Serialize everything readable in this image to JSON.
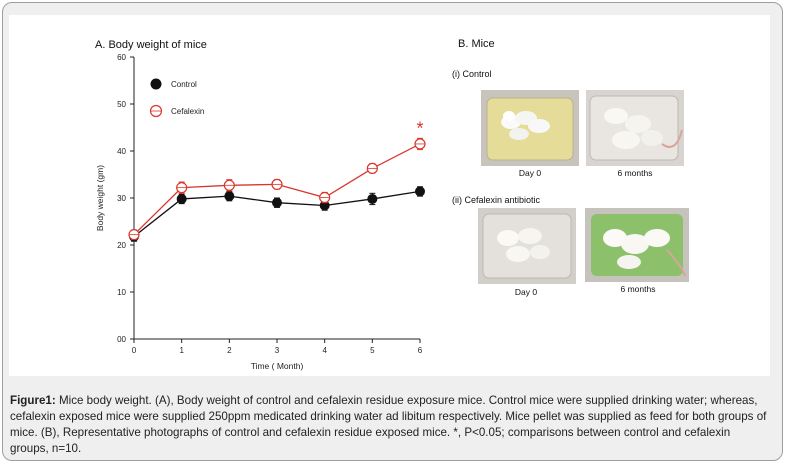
{
  "caption": {
    "label": "Figure1:",
    "text": " Mice body weight. (A), Body weight of control and cefalexin residue exposure mice. Control mice were supplied drinking water; whereas, cefalexin exposed mice were supplied 250ppm medicated drinking water ad libitum respectively. Mice pellet was supplied as feed for both groups of mice. (B), Representative photographs of control and cefalexin residue exposed mice. *, P<0.05; comparisons between control and cefalexin groups, n=10."
  },
  "panel_b": {
    "title": "B. Mice",
    "control_label": "(i) Control",
    "cefalexin_label": "(ii) Cefalexin antibiotic",
    "photos": [
      {
        "caption": "Day 0"
      },
      {
        "caption": "6 months"
      },
      {
        "caption": "Day 0"
      },
      {
        "caption": "6 months"
      }
    ]
  },
  "colors": {
    "control": "#111111",
    "cefalexin": "#d9362b"
  },
  "chart_data": {
    "type": "line",
    "title": "A. Body weight of mice",
    "xlabel": "Time ( Month)",
    "ylabel": "Body weight (gm)",
    "x": [
      0,
      1,
      2,
      3,
      4,
      5,
      6
    ],
    "xlim": [
      0,
      6
    ],
    "ylim": [
      0,
      60
    ],
    "yticks": [
      0,
      10,
      20,
      30,
      40,
      50,
      60
    ],
    "ytick_labels": [
      "00",
      "10",
      "20",
      "30",
      "40",
      "50",
      "60"
    ],
    "series": [
      {
        "name": "Control",
        "marker": "filled-circle",
        "color": "#111111",
        "values": [
          21.8,
          29.8,
          30.4,
          29.0,
          28.4,
          29.8,
          31.4
        ],
        "error": [
          1.0,
          1.0,
          1.0,
          1.0,
          1.0,
          1.2,
          1.0
        ]
      },
      {
        "name": "Cefalexin",
        "marker": "open-circle",
        "color": "#d9362b",
        "values": [
          22.2,
          32.2,
          32.7,
          32.9,
          30.1,
          36.3,
          41.5
        ],
        "error": [
          1.0,
          1.2,
          1.2,
          1.0,
          1.1,
          1.0,
          1.2
        ]
      }
    ],
    "annotations": [
      {
        "text": "*",
        "x": 6,
        "series": "Cefalexin"
      }
    ],
    "legend": "top-left",
    "grid": false
  }
}
